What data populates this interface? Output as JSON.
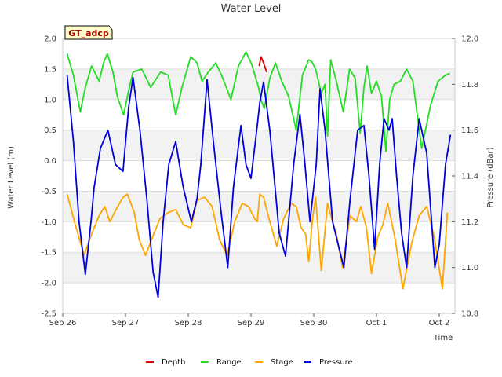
{
  "chart_data": {
    "type": "line",
    "title": "Water Level",
    "xlabel": "Time",
    "ylabel": "Water Level (m)",
    "y2label": "Pressure (dBar)",
    "site_label": "GT_adcp",
    "xlim": [
      0,
      6.25
    ],
    "ylim": [
      -2.5,
      2.0
    ],
    "y2lim": [
      10.8,
      12.0
    ],
    "x_ticks": [
      {
        "value": 0,
        "label": "Sep 26"
      },
      {
        "value": 1,
        "label": "Sep 27"
      },
      {
        "value": 2,
        "label": "Sep 28"
      },
      {
        "value": 3,
        "label": "Sep 29"
      },
      {
        "value": 4,
        "label": "Sep 30"
      },
      {
        "value": 5,
        "label": "Oct 1"
      },
      {
        "value": 6,
        "label": "Oct 2"
      }
    ],
    "y_ticks": [
      {
        "value": 2.0,
        "label": "2.0"
      },
      {
        "value": 1.5,
        "label": "1.5"
      },
      {
        "value": 1.0,
        "label": "1.0"
      },
      {
        "value": 0.5,
        "label": "0.5"
      },
      {
        "value": 0.0,
        "label": "0.0"
      },
      {
        "value": -0.5,
        "label": "-0.5"
      },
      {
        "value": -1.0,
        "label": "-1.0"
      },
      {
        "value": -1.5,
        "label": "-1.5"
      },
      {
        "value": -2.0,
        "label": "-2.0"
      },
      {
        "value": -2.5,
        "label": "-2.5"
      }
    ],
    "y2_ticks": [
      {
        "value": 12.0,
        "label": "12.0"
      },
      {
        "value": 11.8,
        "label": "11.8"
      },
      {
        "value": 11.6,
        "label": "11.6"
      },
      {
        "value": 11.4,
        "label": "11.4"
      },
      {
        "value": 11.2,
        "label": "11.2"
      },
      {
        "value": 11.0,
        "label": "11.0"
      },
      {
        "value": 10.8,
        "label": "10.8"
      }
    ],
    "bands": [
      [
        1.0,
        1.5
      ],
      [
        0.0,
        0.5
      ],
      [
        -1.0,
        -0.5
      ],
      [
        -2.0,
        -1.5
      ]
    ],
    "series": [
      {
        "name": "Depth",
        "color": "#dd0000",
        "axis": "left",
        "x": [
          3.13,
          3.16,
          3.2,
          3.25
        ],
        "values": [
          1.55,
          1.7,
          1.6,
          1.45
        ]
      },
      {
        "name": "Range",
        "color": "#22dd22",
        "axis": "left",
        "x": [
          0.07,
          0.17,
          0.28,
          0.36,
          0.46,
          0.58,
          0.65,
          0.71,
          0.8,
          0.87,
          0.97,
          1.04,
          1.12,
          1.26,
          1.4,
          1.56,
          1.68,
          1.8,
          1.9,
          2.04,
          2.14,
          2.22,
          2.32,
          2.44,
          2.55,
          2.68,
          2.8,
          2.92,
          3.01,
          3.12,
          3.16,
          3.21,
          3.3,
          3.39,
          3.49,
          3.6,
          3.72,
          3.82,
          3.92,
          3.97,
          4.03,
          4.12,
          4.18,
          4.22,
          4.27,
          4.36,
          4.47,
          4.53,
          4.57,
          4.66,
          4.74,
          4.8,
          4.85,
          4.92,
          5.0,
          5.08,
          5.15,
          5.21,
          5.28,
          5.38,
          5.48,
          5.58,
          5.72,
          5.86,
          5.98,
          6.1,
          6.17
        ],
        "values": [
          1.75,
          1.4,
          0.8,
          1.2,
          1.55,
          1.3,
          1.6,
          1.75,
          1.45,
          1.05,
          0.75,
          1.1,
          1.45,
          1.5,
          1.2,
          1.45,
          1.4,
          0.75,
          1.2,
          1.7,
          1.6,
          1.3,
          1.45,
          1.6,
          1.35,
          1.0,
          1.55,
          1.78,
          1.58,
          1.2,
          1.0,
          0.85,
          1.35,
          1.6,
          1.3,
          1.05,
          0.5,
          1.4,
          1.65,
          1.62,
          1.5,
          1.1,
          1.25,
          0.4,
          1.65,
          1.3,
          0.8,
          1.2,
          1.5,
          1.35,
          0.45,
          1.2,
          1.55,
          1.1,
          1.3,
          1.05,
          0.15,
          1.0,
          1.25,
          1.3,
          1.5,
          1.3,
          0.2,
          0.9,
          1.3,
          1.4,
          1.43
        ]
      },
      {
        "name": "Stage",
        "color": "#ffa500",
        "axis": "left",
        "x": [
          0.07,
          0.2,
          0.34,
          0.46,
          0.58,
          0.67,
          0.75,
          0.85,
          0.96,
          1.03,
          1.14,
          1.22,
          1.32,
          1.45,
          1.55,
          1.68,
          1.8,
          1.92,
          2.04,
          2.14,
          2.26,
          2.38,
          2.5,
          2.62,
          2.74,
          2.86,
          2.96,
          3.06,
          3.1,
          3.14,
          3.2,
          3.3,
          3.41,
          3.52,
          3.64,
          3.72,
          3.8,
          3.87,
          3.92,
          3.98,
          4.03,
          4.12,
          4.22,
          4.3,
          4.36,
          4.46,
          4.52,
          4.58,
          4.68,
          4.75,
          4.84,
          4.92,
          5.02,
          5.1,
          5.18,
          5.3,
          5.42,
          5.56,
          5.68,
          5.8,
          5.92,
          6.05,
          6.13
        ],
        "values": [
          -0.55,
          -1.05,
          -1.55,
          -1.2,
          -0.9,
          -0.75,
          -1.0,
          -0.8,
          -0.6,
          -0.55,
          -0.85,
          -1.3,
          -1.55,
          -1.2,
          -0.95,
          -0.85,
          -0.8,
          -1.05,
          -1.1,
          -0.65,
          -0.6,
          -0.75,
          -1.3,
          -1.55,
          -1.0,
          -0.7,
          -0.75,
          -0.95,
          -1.0,
          -0.55,
          -0.6,
          -1.0,
          -1.4,
          -0.95,
          -0.7,
          -0.75,
          -1.1,
          -1.2,
          -1.65,
          -0.95,
          -0.6,
          -1.8,
          -0.7,
          -1.0,
          -1.2,
          -1.75,
          -1.3,
          -0.9,
          -1.0,
          -0.75,
          -1.1,
          -1.85,
          -1.25,
          -1.05,
          -0.7,
          -1.3,
          -2.1,
          -1.35,
          -0.9,
          -0.75,
          -1.25,
          -2.1,
          -0.85
        ]
      },
      {
        "name": "Pressure",
        "color": "#0000dd",
        "axis": "right",
        "x": [
          0.07,
          0.17,
          0.26,
          0.36,
          0.45,
          0.5,
          0.6,
          0.72,
          0.84,
          0.96,
          1.05,
          1.12,
          1.23,
          1.34,
          1.44,
          1.52,
          1.6,
          1.69,
          1.8,
          1.92,
          2.05,
          2.14,
          2.2,
          2.3,
          2.4,
          2.52,
          2.63,
          2.72,
          2.84,
          2.92,
          3.0,
          3.1,
          3.14,
          3.2,
          3.3,
          3.45,
          3.55,
          3.68,
          3.78,
          3.86,
          3.94,
          4.04,
          4.1,
          4.18,
          4.3,
          4.48,
          4.58,
          4.7,
          4.8,
          4.88,
          4.97,
          5.05,
          5.12,
          5.2,
          5.25,
          5.32,
          5.4,
          5.48,
          5.58,
          5.68,
          5.8,
          5.93,
          6.0,
          6.1,
          6.18
        ],
        "values": [
          11.84,
          11.55,
          11.2,
          10.97,
          11.2,
          11.35,
          11.52,
          11.6,
          11.45,
          11.42,
          11.7,
          11.83,
          11.6,
          11.3,
          10.98,
          10.87,
          11.2,
          11.45,
          11.55,
          11.35,
          11.2,
          11.3,
          11.45,
          11.82,
          11.55,
          11.25,
          11.0,
          11.35,
          11.62,
          11.45,
          11.39,
          11.62,
          11.72,
          11.81,
          11.6,
          11.15,
          11.05,
          11.45,
          11.67,
          11.45,
          11.2,
          11.45,
          11.78,
          11.6,
          11.2,
          11.0,
          11.3,
          11.6,
          11.62,
          11.4,
          11.08,
          11.45,
          11.65,
          11.6,
          11.65,
          11.4,
          11.15,
          11.0,
          11.4,
          11.65,
          11.5,
          11.0,
          11.1,
          11.45,
          11.58
        ]
      }
    ],
    "legend": [
      "Depth",
      "Range",
      "Stage",
      "Pressure"
    ]
  }
}
